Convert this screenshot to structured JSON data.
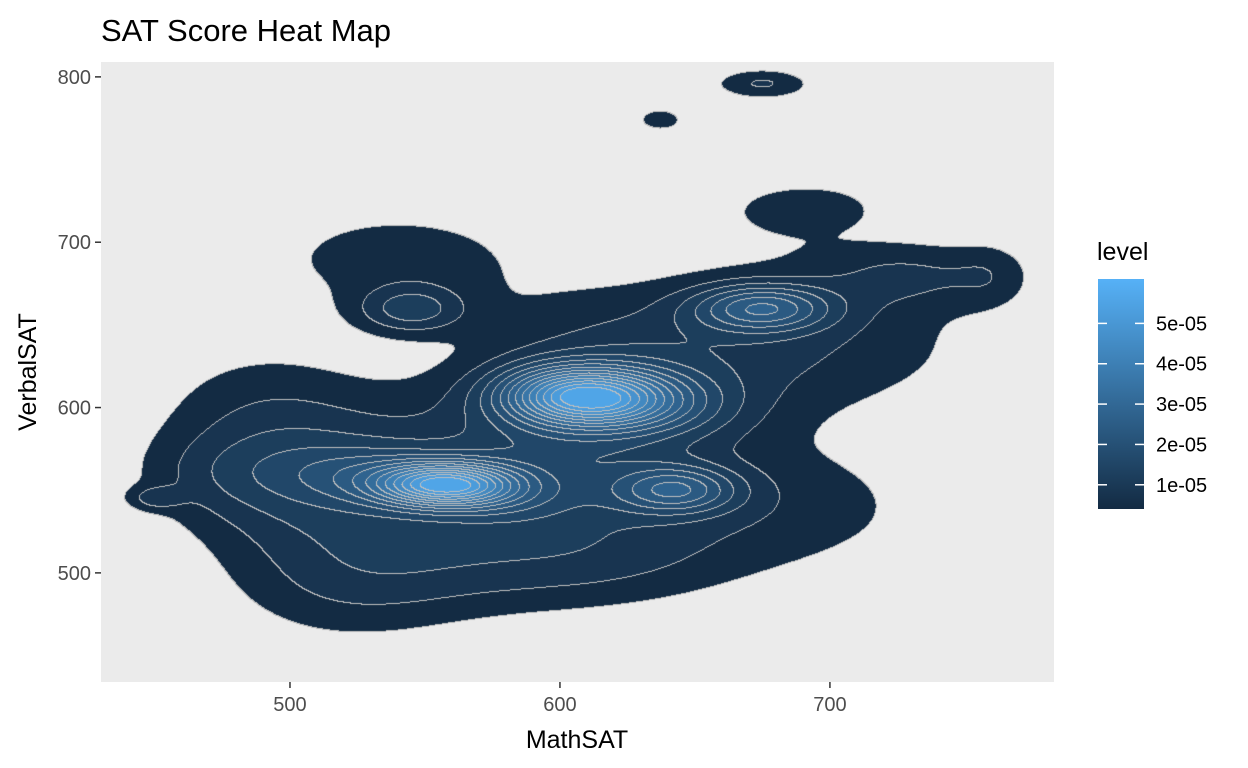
{
  "chart_data": {
    "type": "heatmap",
    "title": "SAT Score Heat Map",
    "xlabel": "MathSAT",
    "ylabel": "VerbalSAT",
    "xlim": [
      430,
      783
    ],
    "ylim": [
      434,
      809
    ],
    "x_ticks": [
      500,
      600,
      700
    ],
    "y_ticks": [
      500,
      600,
      700,
      800
    ],
    "grid": true,
    "legend": {
      "title": "level",
      "placement": "right",
      "labels": [
        "1e-05",
        "2e-05",
        "3e-05",
        "4e-05",
        "5e-05"
      ],
      "values": [
        1e-05,
        2e-05,
        3e-05,
        4e-05,
        5e-05
      ],
      "range": [
        4e-06,
        6.1e-05
      ],
      "color_low": "#132b43",
      "color_high": "#56b1f7"
    },
    "contour_line_color": "#c0c0c0",
    "density_peaks": [
      {
        "MathSAT": 612,
        "VerbalSAT": 606,
        "level": 5.8e-05
      },
      {
        "MathSAT": 558,
        "VerbalSAT": 553,
        "level": 5.7e-05
      },
      {
        "MathSAT": 675,
        "VerbalSAT": 660,
        "level": 2.7e-05
      },
      {
        "MathSAT": 545,
        "VerbalSAT": 659,
        "level": 1.6e-05
      },
      {
        "MathSAT": 643,
        "VerbalSAT": 550,
        "level": 2.6e-05
      }
    ],
    "levels": [
      4e-06,
      8e-06,
      1.2e-05,
      1.6e-05,
      2e-05,
      2.4e-05,
      2.8e-05,
      3.2e-05,
      3.6e-05,
      4e-05,
      4.4e-05,
      4.8e-05,
      5.2e-05,
      5.6e-05
    ]
  }
}
